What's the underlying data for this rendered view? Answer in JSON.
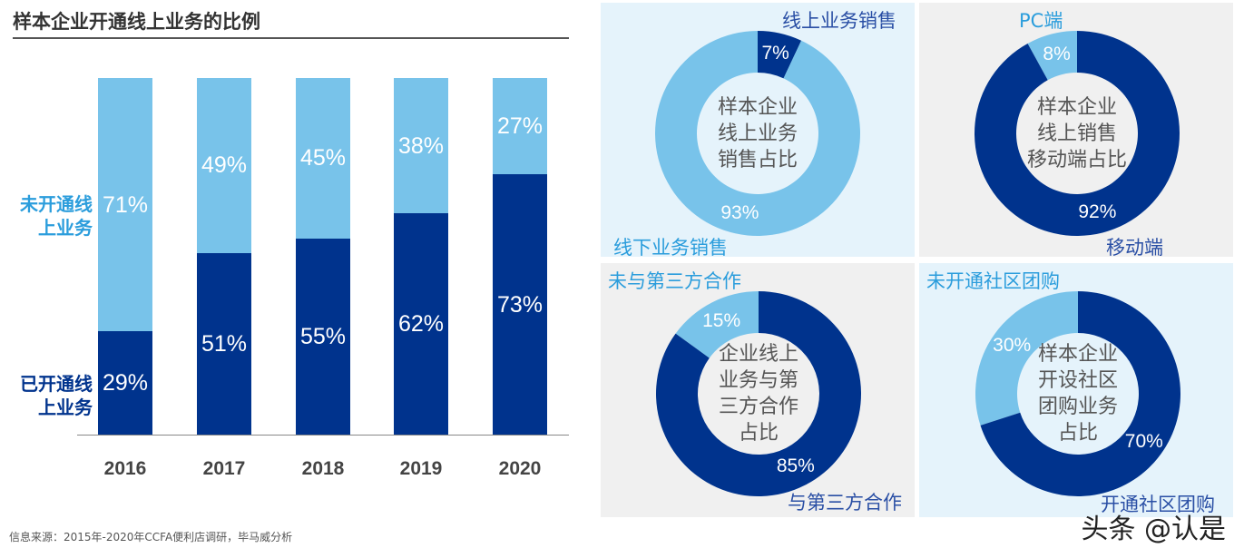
{
  "colors": {
    "dark": "#00338d",
    "light": "#78c3ea",
    "panel_blue": "#e5f3fb",
    "panel_grey": "#f0f0f0",
    "dark_text": "#2a4fa5",
    "light_text": "#2b9ddc"
  },
  "chart_data": [
    {
      "type": "bar",
      "stacked": true,
      "title": "样本企业开通线上业务的比例",
      "categories": [
        "2016",
        "2017",
        "2018",
        "2019",
        "2020"
      ],
      "series": [
        {
          "name": "已开通线上业务",
          "values": [
            29,
            51,
            55,
            62,
            73
          ],
          "labels": [
            "29%",
            "51%",
            "55%",
            "62%",
            "73%"
          ]
        },
        {
          "name": "未开通线上业务",
          "values": [
            71,
            49,
            45,
            38,
            27
          ],
          "labels": [
            "71%",
            "49%",
            "45%",
            "38%",
            "27%"
          ]
        }
      ],
      "ylim": [
        0,
        100
      ]
    },
    {
      "type": "pie",
      "donut": true,
      "center_text": "样本企业线上业务销售占比",
      "slices": [
        {
          "name": "线上业务销售",
          "value": 7,
          "label": "7%"
        },
        {
          "name": "线下业务销售",
          "value": 93,
          "label": "93%"
        }
      ]
    },
    {
      "type": "pie",
      "donut": true,
      "center_text": "样本企业线上销售移动端占比",
      "slices": [
        {
          "name": "PC端",
          "value": 8,
          "label": "8%"
        },
        {
          "name": "移动端",
          "value": 92,
          "label": "92%"
        }
      ]
    },
    {
      "type": "pie",
      "donut": true,
      "center_text": "企业线上业务与第三方合作占比",
      "slices": [
        {
          "name": "未与第三方合作",
          "value": 15,
          "label": "15%"
        },
        {
          "name": "与第三方合作",
          "value": 85,
          "label": "85%"
        }
      ]
    },
    {
      "type": "pie",
      "donut": true,
      "center_text": "样本企业开设社区团购业务占比",
      "slices": [
        {
          "name": "未开通社区团购",
          "value": 30,
          "label": "30%"
        },
        {
          "name": "开通社区团购",
          "value": 70,
          "label": "70%"
        }
      ]
    }
  ],
  "side_labels": {
    "not_open": "未开通线\n上业务",
    "open": "已开通线\n上业务"
  },
  "center_lines": [
    [
      "样本企业",
      "线上业务",
      "销售占比"
    ],
    [
      "样本企业",
      "线上销售",
      "移动端占比"
    ],
    [
      "企业线上",
      "业务与第",
      "三方合作",
      "占比"
    ],
    [
      "样本企业",
      "开设社区",
      "团购业务",
      "占比"
    ]
  ],
  "source": "信息来源：2015年-2020年CCFA便利店调研，毕马威分析",
  "watermark": "头条 @认是"
}
